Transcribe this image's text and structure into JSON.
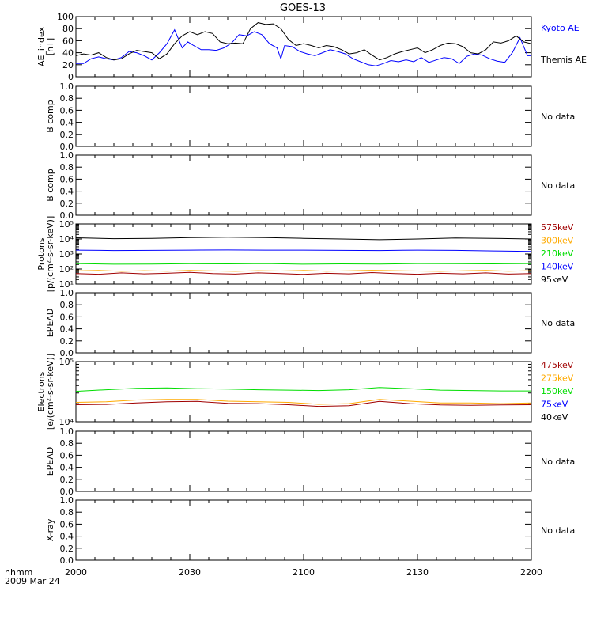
{
  "title": "GOES-13",
  "time_axis": {
    "ticks": [
      "2000",
      "2030",
      "2100",
      "2130",
      "2200"
    ],
    "unit_label": "hhmm",
    "date_label": "2009 Mar 24"
  },
  "colors": {
    "black": "#000000",
    "blue": "#0000ff",
    "green": "#00dd00",
    "orange": "#ffaa00",
    "darkred": "#a00000"
  },
  "chart_data": [
    {
      "type": "line",
      "ylabel_lines": [
        "AE_index",
        "[nT]"
      ],
      "scale": "linear",
      "ylim": [
        0,
        100
      ],
      "yticks": [
        "0",
        "20",
        "40",
        "60",
        "80",
        "100"
      ],
      "x_range_minutes": [
        0,
        120
      ],
      "legend": [
        {
          "name": "Kyoto AE",
          "color": "#0000ff"
        },
        {
          "name": "Themis AE",
          "color": "#000000"
        }
      ],
      "series": [
        {
          "name": "Kyoto AE",
          "color": "#0000ff",
          "x": [
            0,
            2,
            4,
            6,
            8,
            10,
            12,
            14,
            16,
            18,
            20,
            22,
            24,
            26,
            28,
            29.5,
            31,
            33,
            35,
            37,
            39,
            41,
            43,
            45,
            47,
            49,
            51,
            53,
            54,
            55,
            57,
            59,
            61,
            63,
            65,
            67,
            69,
            71,
            73,
            75,
            77,
            79,
            81,
            83,
            85,
            87,
            89,
            91,
            93,
            95,
            97,
            99,
            101,
            103,
            105,
            107,
            109,
            111,
            113,
            115,
            117,
            119,
            120
          ],
          "y": [
            22,
            22,
            30,
            33,
            30,
            28,
            32,
            42,
            40,
            35,
            28,
            40,
            55,
            78,
            48,
            58,
            52,
            45,
            45,
            44,
            48,
            56,
            70,
            68,
            75,
            70,
            55,
            48,
            30,
            52,
            50,
            42,
            38,
            35,
            40,
            45,
            42,
            38,
            30,
            25,
            20,
            18,
            22,
            27,
            25,
            28,
            25,
            32,
            24,
            28,
            32,
            30,
            22,
            34,
            38,
            36,
            30,
            26,
            24,
            40,
            65,
            35,
            35
          ]
        },
        {
          "name": "Themis AE",
          "color": "#000000",
          "x": [
            0,
            2,
            4,
            6,
            8,
            10,
            12,
            14,
            16,
            18,
            20,
            22,
            24,
            26,
            28,
            30,
            32,
            34,
            36,
            38,
            40,
            42,
            44,
            46,
            48,
            50,
            52,
            54,
            56,
            58,
            60,
            62,
            64,
            66,
            68,
            70,
            72,
            74,
            76,
            78,
            80,
            82,
            84,
            86,
            88,
            90,
            92,
            94,
            96,
            98,
            100,
            102,
            104,
            106,
            108,
            110,
            112,
            114,
            116,
            118,
            120
          ],
          "y": [
            35,
            38,
            36,
            40,
            32,
            28,
            30,
            38,
            44,
            42,
            40,
            30,
            38,
            55,
            68,
            75,
            70,
            75,
            72,
            58,
            55,
            56,
            55,
            80,
            90,
            87,
            88,
            80,
            62,
            52,
            55,
            52,
            48,
            52,
            50,
            45,
            38,
            40,
            45,
            36,
            28,
            32,
            38,
            42,
            45,
            48,
            40,
            45,
            52,
            56,
            55,
            50,
            40,
            38,
            45,
            58,
            56,
            60,
            68,
            58,
            55
          ]
        }
      ]
    },
    {
      "type": "line",
      "ylabel_lines": [
        "B comp"
      ],
      "scale": "linear",
      "ylim": [
        0,
        1
      ],
      "yticks": [
        "0.0",
        "0.2",
        "0.4",
        "0.6",
        "0.8",
        "1.0"
      ],
      "note": "No data",
      "series": []
    },
    {
      "type": "line",
      "ylabel_lines": [
        "B comp"
      ],
      "scale": "linear",
      "ylim": [
        0,
        1
      ],
      "yticks": [
        "0.0",
        "0.2",
        "0.4",
        "0.6",
        "0.8",
        "1.0"
      ],
      "note": "No data",
      "series": []
    },
    {
      "type": "line",
      "ylabel_lines": [
        "Protons",
        "[p/(cm²-s-sr-keV)]"
      ],
      "scale": "log",
      "ylim": [
        10,
        100000
      ],
      "yticks": [
        "10¹",
        "10²",
        "10³",
        "10⁴",
        "10⁵"
      ],
      "x_range_minutes": [
        0,
        120
      ],
      "legend": [
        {
          "name": "575keV",
          "color": "#a00000"
        },
        {
          "name": "300keV",
          "color": "#ffaa00"
        },
        {
          "name": "210keV",
          "color": "#00dd00"
        },
        {
          "name": "140keV",
          "color": "#0000ff"
        },
        {
          "name": "95keV",
          "color": "#000000"
        }
      ],
      "series": [
        {
          "name": "95keV",
          "color": "#000000",
          "x": [
            0,
            10,
            20,
            30,
            40,
            50,
            60,
            70,
            80,
            90,
            100,
            110,
            120
          ],
          "y": [
            12000,
            10500,
            11000,
            12500,
            13000,
            12500,
            11000,
            10000,
            9000,
            10000,
            11500,
            11000,
            10000
          ]
        },
        {
          "name": "140keV",
          "color": "#0000ff",
          "x": [
            0,
            10,
            20,
            30,
            40,
            50,
            60,
            70,
            80,
            90,
            100,
            110,
            120
          ],
          "y": [
            1800,
            1700,
            1750,
            1800,
            1850,
            1800,
            1800,
            1750,
            1700,
            1800,
            1750,
            1600,
            1500
          ]
        },
        {
          "name": "210keV",
          "color": "#00dd00",
          "x": [
            0,
            10,
            20,
            30,
            40,
            50,
            60,
            70,
            80,
            90,
            100,
            110,
            120
          ],
          "y": [
            230,
            210,
            215,
            225,
            220,
            230,
            210,
            220,
            215,
            230,
            225,
            220,
            230
          ]
        },
        {
          "name": "300keV",
          "color": "#ffaa00",
          "x": [
            0,
            6,
            12,
            18,
            24,
            30,
            36,
            42,
            48,
            54,
            60,
            66,
            72,
            78,
            84,
            90,
            96,
            102,
            108,
            114,
            120
          ],
          "y": [
            75,
            80,
            70,
            78,
            72,
            80,
            75,
            70,
            78,
            74,
            80,
            72,
            76,
            82,
            78,
            74,
            70,
            76,
            80,
            72,
            78
          ]
        },
        {
          "name": "575keV",
          "color": "#a00000",
          "x": [
            0,
            6,
            12,
            18,
            24,
            30,
            36,
            42,
            48,
            54,
            60,
            66,
            72,
            78,
            84,
            90,
            96,
            102,
            108,
            114,
            120
          ],
          "y": [
            50,
            45,
            55,
            48,
            52,
            60,
            50,
            46,
            55,
            50,
            44,
            52,
            48,
            58,
            50,
            45,
            52,
            48,
            55,
            46,
            50
          ]
        }
      ]
    },
    {
      "type": "line",
      "ylabel_lines": [
        "EPEAD"
      ],
      "scale": "linear",
      "ylim": [
        0,
        1
      ],
      "yticks": [
        "0.0",
        "0.2",
        "0.4",
        "0.6",
        "0.8",
        "1.0"
      ],
      "note": "No data",
      "series": []
    },
    {
      "type": "line",
      "ylabel_lines": [
        "Electrons",
        "[e/(cm²-s-sr-keV)]"
      ],
      "scale": "log",
      "ylim": [
        10000,
        100000
      ],
      "yticks": [
        "10⁴",
        "10⁵"
      ],
      "x_range_minutes": [
        0,
        120
      ],
      "legend": [
        {
          "name": "475keV",
          "color": "#a00000"
        },
        {
          "name": "275keV",
          "color": "#ffaa00"
        },
        {
          "name": "150keV",
          "color": "#00dd00"
        },
        {
          "name": "75keV",
          "color": "#0000ff"
        },
        {
          "name": "40keV",
          "color": "#000000"
        }
      ],
      "series": [
        {
          "name": "150keV",
          "color": "#00dd00",
          "x": [
            0,
            8,
            16,
            24,
            32,
            40,
            48,
            56,
            64,
            72,
            80,
            88,
            96,
            104,
            112,
            120
          ],
          "y": [
            32000,
            34000,
            36000,
            36500,
            35500,
            35000,
            34000,
            33500,
            33000,
            34000,
            37000,
            35500,
            33500,
            33000,
            32500,
            32500
          ]
        },
        {
          "name": "275keV",
          "color": "#ffaa00",
          "x": [
            0,
            8,
            16,
            24,
            32,
            40,
            48,
            56,
            64,
            72,
            80,
            88,
            96,
            104,
            112,
            120
          ],
          "y": [
            21000,
            21500,
            23000,
            23500,
            23500,
            22000,
            21500,
            21000,
            19500,
            20000,
            23500,
            22000,
            20500,
            20500,
            20000,
            20500
          ]
        },
        {
          "name": "475keV",
          "color": "#a00000",
          "x": [
            0,
            8,
            16,
            24,
            32,
            40,
            48,
            56,
            64,
            72,
            80,
            88,
            96,
            104,
            112,
            120
          ],
          "y": [
            19200,
            19400,
            20500,
            21500,
            21800,
            20200,
            20000,
            19200,
            18000,
            18500,
            21800,
            20000,
            19000,
            18800,
            19000,
            19200
          ]
        }
      ]
    },
    {
      "type": "line",
      "ylabel_lines": [
        "EPEAD"
      ],
      "scale": "linear",
      "ylim": [
        0,
        1
      ],
      "yticks": [
        "0.0",
        "0.2",
        "0.4",
        "0.6",
        "0.8",
        "1.0"
      ],
      "note": "No data",
      "series": []
    },
    {
      "type": "line",
      "ylabel_lines": [
        "X-ray"
      ],
      "scale": "linear",
      "ylim": [
        0,
        1
      ],
      "yticks": [
        "0.0",
        "0.2",
        "0.4",
        "0.6",
        "0.8",
        "1.0"
      ],
      "note": "No data",
      "series": []
    }
  ]
}
